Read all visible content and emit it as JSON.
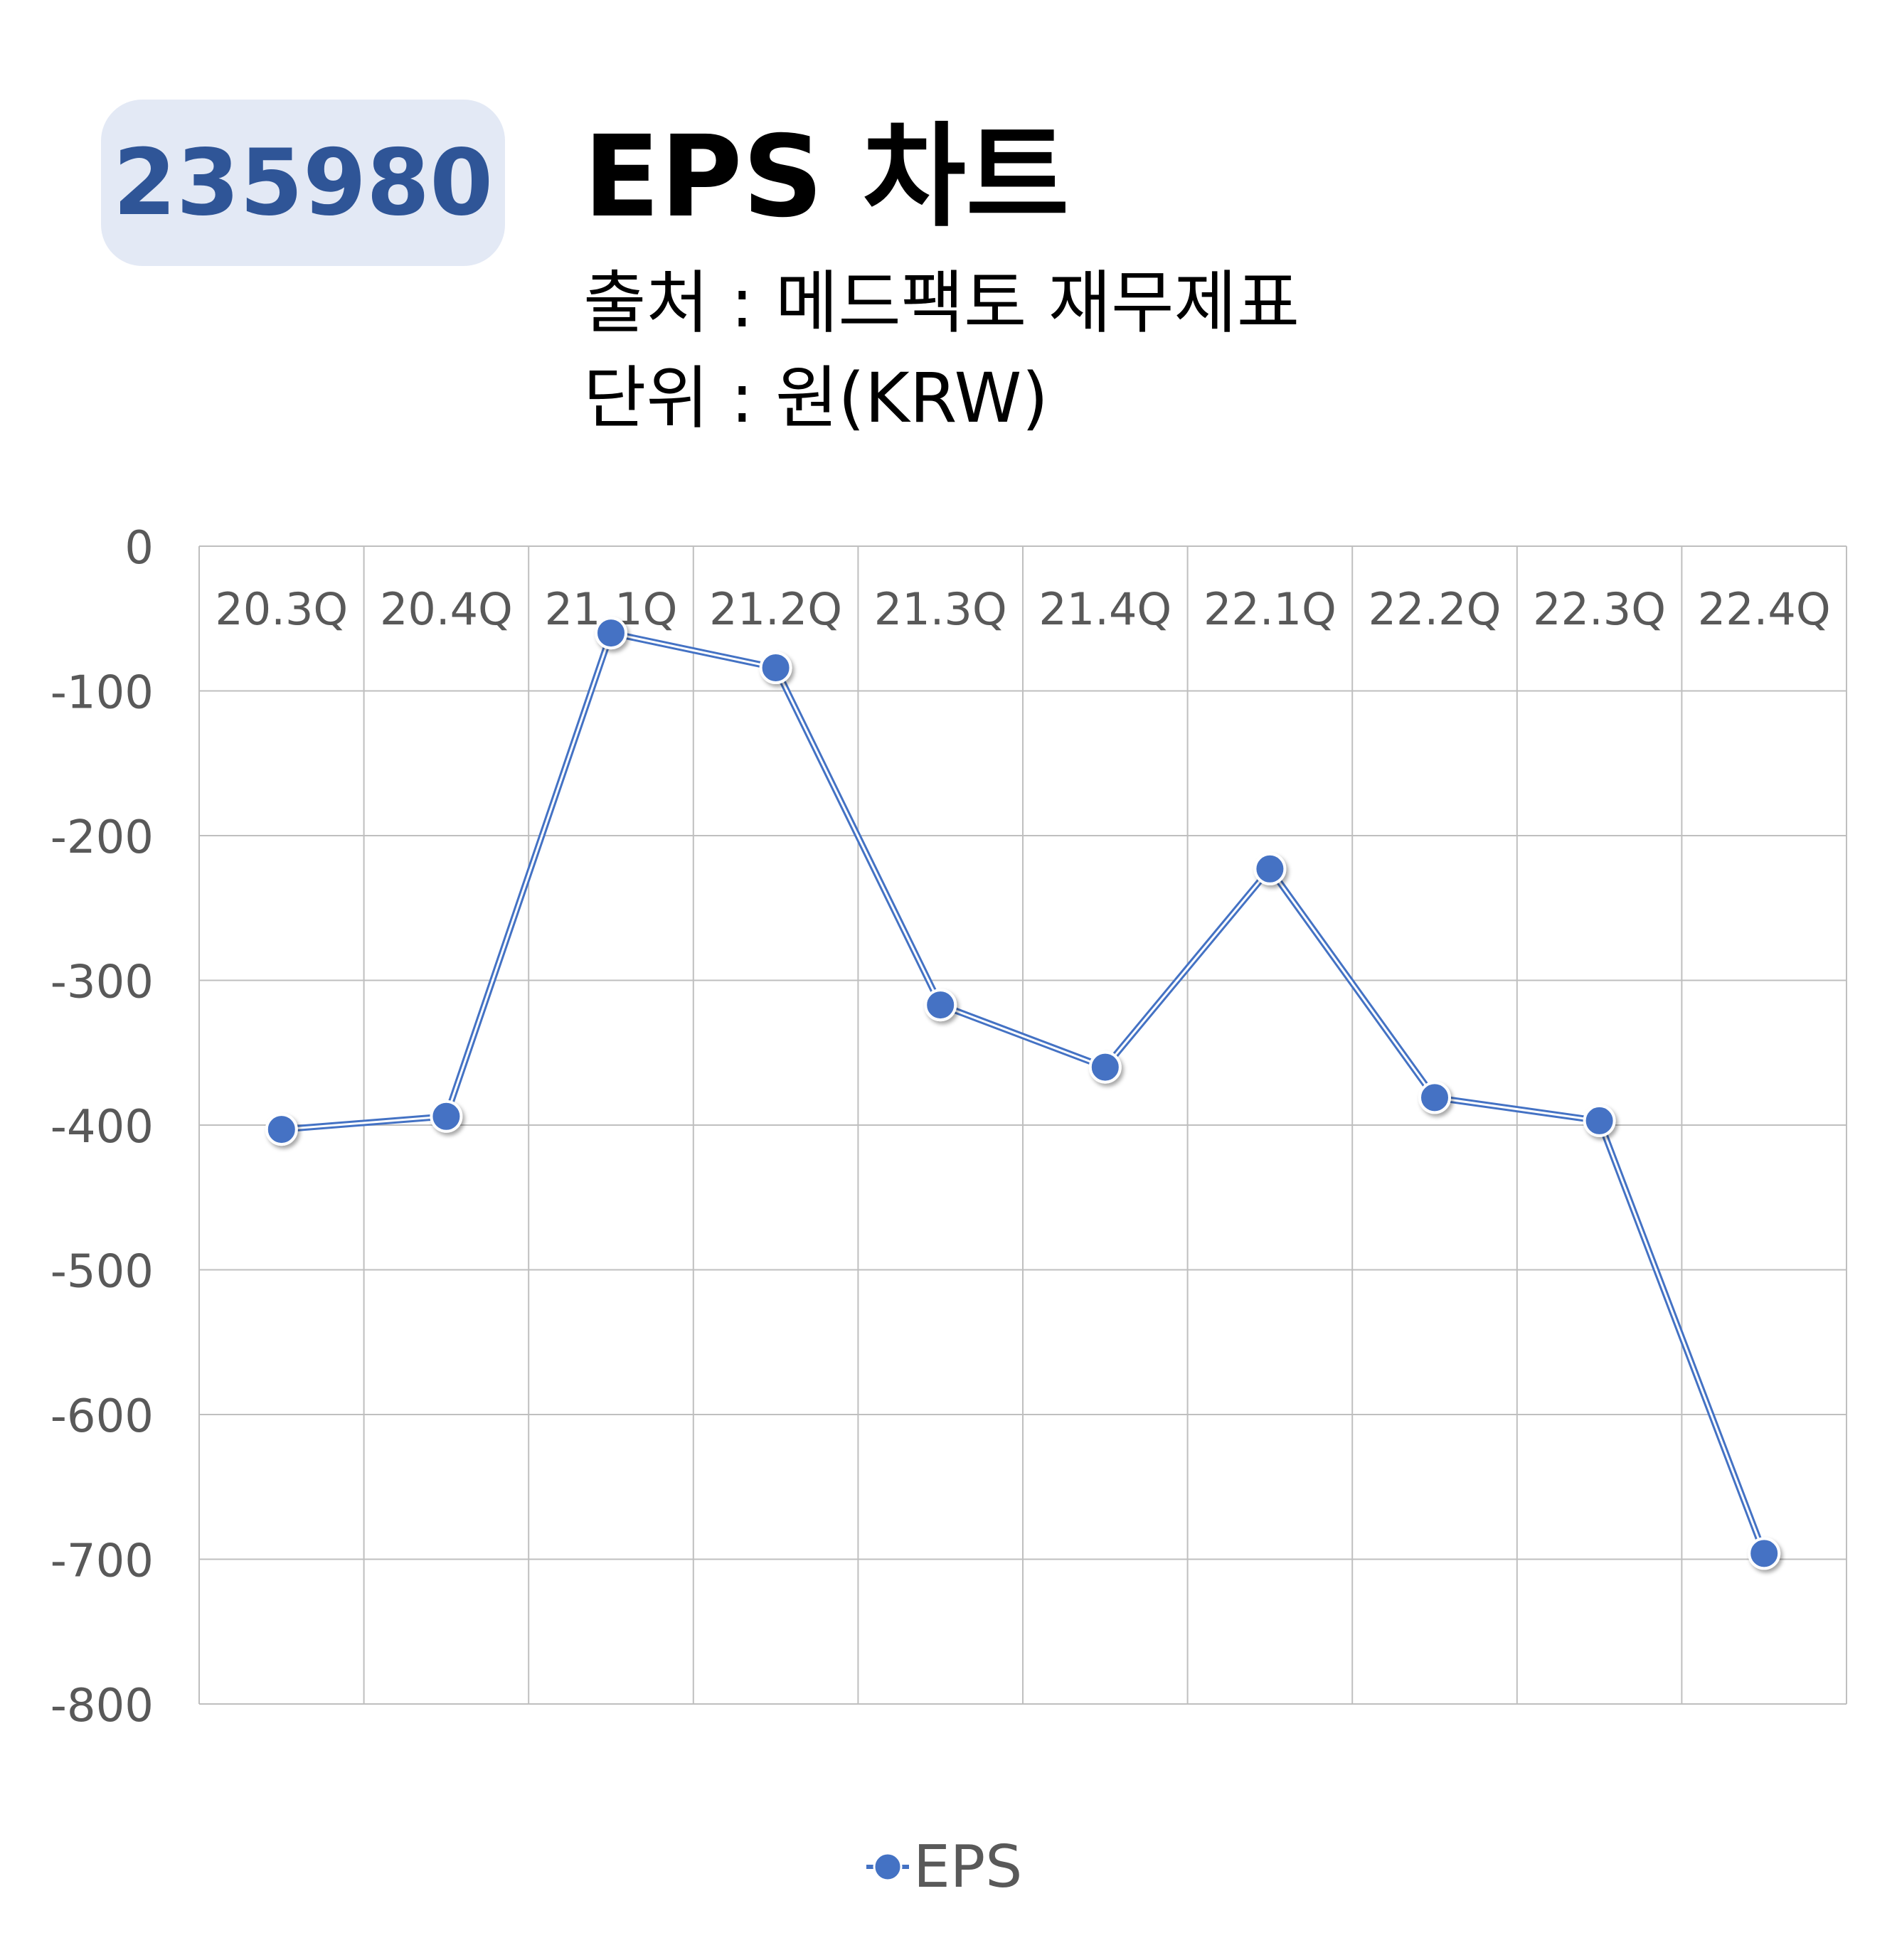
{
  "header": {
    "ticker": "235980",
    "title": "EPS 차트",
    "source": "출처 : 메드팩토 재무제표",
    "unit": "단위 : 원(KRW)"
  },
  "chart_data": {
    "type": "line",
    "categories": [
      "20.3Q",
      "20.4Q",
      "21.1Q",
      "21.2Q",
      "21.3Q",
      "21.4Q",
      "22.1Q",
      "22.2Q",
      "22.3Q",
      "22.4Q"
    ],
    "series": [
      {
        "name": "EPS",
        "values": [
          -403,
          -394,
          -60,
          -84,
          -317,
          -360,
          -223,
          -381,
          -397,
          -696
        ]
      }
    ],
    "ylim": [
      -800,
      0
    ],
    "yticks": [
      0,
      -100,
      -200,
      -300,
      -400,
      -500,
      -600,
      -700,
      -800
    ],
    "grid": true,
    "legend": "bottom",
    "x_labels_position": "top",
    "colors": {
      "line": "#4472c4",
      "marker": "#4472c4",
      "grid": "#bfbfbf",
      "tick_text": "#595959"
    }
  }
}
